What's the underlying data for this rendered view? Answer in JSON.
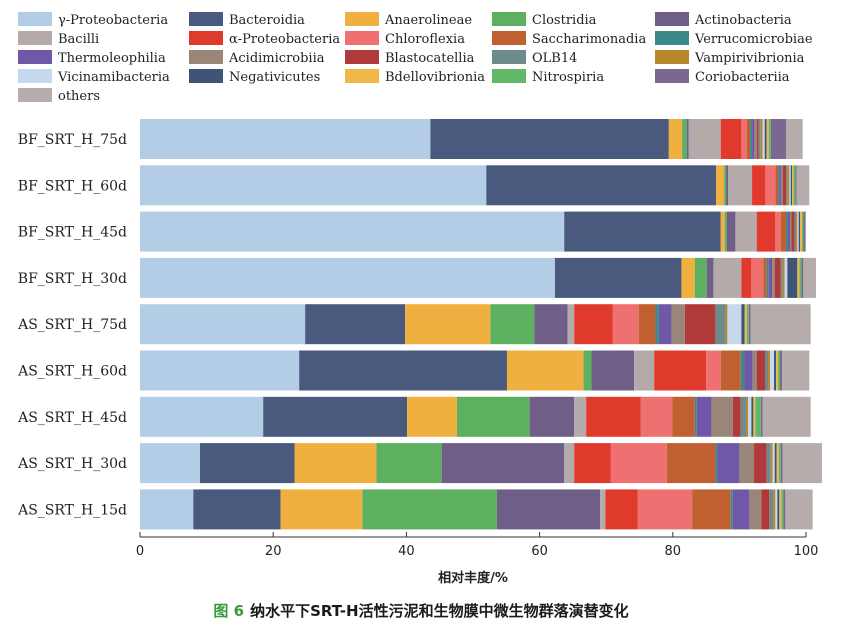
{
  "caption": {
    "label": "图 6",
    "text": "纳水平下SRT-H活性污泥和生物膜中微生物群落演替变化"
  },
  "chart_data": {
    "type": "bar",
    "orientation": "horizontal",
    "stacked": true,
    "title": "",
    "xlabel": "相对丰度/%",
    "ylabel": "",
    "xlim": [
      0,
      100
    ],
    "xticks": [
      0,
      20,
      40,
      60,
      80,
      100
    ],
    "legend_position": "top",
    "categories": [
      "BF_SRT_H_75d",
      "BF_SRT_H_60d",
      "BF_SRT_H_45d",
      "BF_SRT_H_30d",
      "AS_SRT_H_75d",
      "AS_SRT_H_60d",
      "AS_SRT_H_45d",
      "AS_SRT_H_30d",
      "AS_SRT_H_15d"
    ],
    "series": [
      {
        "name": "γ-Proteobacteria",
        "color": "#b3cde6",
        "values": [
          43.6,
          52.0,
          63.7,
          62.3,
          24.8,
          23.9,
          18.5,
          9.0,
          8.0
        ]
      },
      {
        "name": "Bacteroidia",
        "color": "#4a5a7e",
        "values": [
          35.8,
          34.5,
          23.5,
          19.0,
          15.0,
          31.2,
          21.6,
          14.2,
          13.1
        ]
      },
      {
        "name": "Anaerolineae",
        "color": "#f0b040",
        "values": [
          2.0,
          1.2,
          0.6,
          2.0,
          12.8,
          11.5,
          7.5,
          12.3,
          12.3
        ]
      },
      {
        "name": "Clostridia",
        "color": "#5cb060",
        "values": [
          0.7,
          0.3,
          0.3,
          1.8,
          6.6,
          1.2,
          10.9,
          9.8,
          20.2
        ]
      },
      {
        "name": "Actinobacteria",
        "color": "#6e5e88",
        "values": [
          0.3,
          0.3,
          1.3,
          1.0,
          5.0,
          6.4,
          6.7,
          18.4,
          15.5
        ]
      },
      {
        "name": "Bacilli",
        "color": "#b4aaaa",
        "values": [
          4.8,
          3.6,
          3.2,
          4.2,
          1.0,
          3.0,
          1.8,
          1.5,
          0.8
        ]
      },
      {
        "name": "α-Proteobacteria",
        "color": "#e03a2c",
        "values": [
          3.1,
          2.0,
          2.8,
          1.5,
          5.8,
          7.8,
          8.2,
          5.5,
          4.8
        ]
      },
      {
        "name": "Chloroflexia",
        "color": "#ee7070",
        "values": [
          0.8,
          1.5,
          0.8,
          1.8,
          3.9,
          2.2,
          4.7,
          8.4,
          8.2
        ]
      },
      {
        "name": "Saccharimonadia",
        "color": "#c06030",
        "values": [
          0.5,
          0.4,
          0.8,
          0.5,
          2.5,
          3.0,
          3.4,
          7.3,
          5.8
        ]
      },
      {
        "name": "Verrucomicrobiae",
        "color": "#3a8a8a",
        "values": [
          0.3,
          0.2,
          0.3,
          0.3,
          0.5,
          0.5,
          0.3,
          0.3,
          0.3
        ]
      },
      {
        "name": "Thermoleophilia",
        "color": "#7058a8",
        "values": [
          0.4,
          0.3,
          0.3,
          0.5,
          1.9,
          1.3,
          2.2,
          3.3,
          2.5
        ]
      },
      {
        "name": "Acidimicrobiia",
        "color": "#9a8678",
        "values": [
          0.3,
          0.2,
          0.2,
          0.4,
          2.0,
          0.6,
          3.2,
          2.2,
          1.8
        ]
      },
      {
        "name": "Blastocatellia",
        "color": "#b03a3a",
        "values": [
          0.3,
          0.5,
          0.5,
          0.9,
          4.6,
          1.3,
          1.2,
          1.9,
          1.2
        ]
      },
      {
        "name": "OLB14",
        "color": "#6c8c8c",
        "values": [
          0.3,
          0.2,
          0.2,
          0.3,
          1.5,
          0.4,
          0.8,
          0.6,
          0.6
        ]
      },
      {
        "name": "Vampirivibrionia",
        "color": "#b8862c",
        "values": [
          0.3,
          0.3,
          0.2,
          0.3,
          0.3,
          0.3,
          0.3,
          0.3,
          0.3
        ]
      },
      {
        "name": "Vicinamibacteria",
        "color": "#c7d9ee",
        "values": [
          0.3,
          0.2,
          0.2,
          0.4,
          2.1,
          0.6,
          0.5,
          0.3,
          0.3
        ]
      },
      {
        "name": "Negativicutes",
        "color": "#3e5478",
        "values": [
          0.3,
          0.2,
          0.2,
          1.5,
          0.5,
          0.3,
          0.3,
          0.3,
          0.3
        ]
      },
      {
        "name": "Bdellovibrionia",
        "color": "#f0b848",
        "values": [
          0.3,
          0.2,
          0.3,
          0.3,
          0.3,
          0.3,
          0.3,
          0.3,
          0.3
        ]
      },
      {
        "name": "Nitrospiria",
        "color": "#60b868",
        "values": [
          0.3,
          0.3,
          0.2,
          0.3,
          0.3,
          0.3,
          0.8,
          0.3,
          0.3
        ]
      },
      {
        "name": "Coriobacteriia",
        "color": "#7a6890",
        "values": [
          2.3,
          0.2,
          0.3,
          0.3,
          0.3,
          0.3,
          0.3,
          0.3,
          0.3
        ]
      },
      {
        "name": "others",
        "color": "#b6acac",
        "values": [
          2.5,
          1.9,
          0.1,
          1.9,
          9.0,
          4.1,
          7.2,
          5.9,
          4.1
        ]
      }
    ]
  }
}
